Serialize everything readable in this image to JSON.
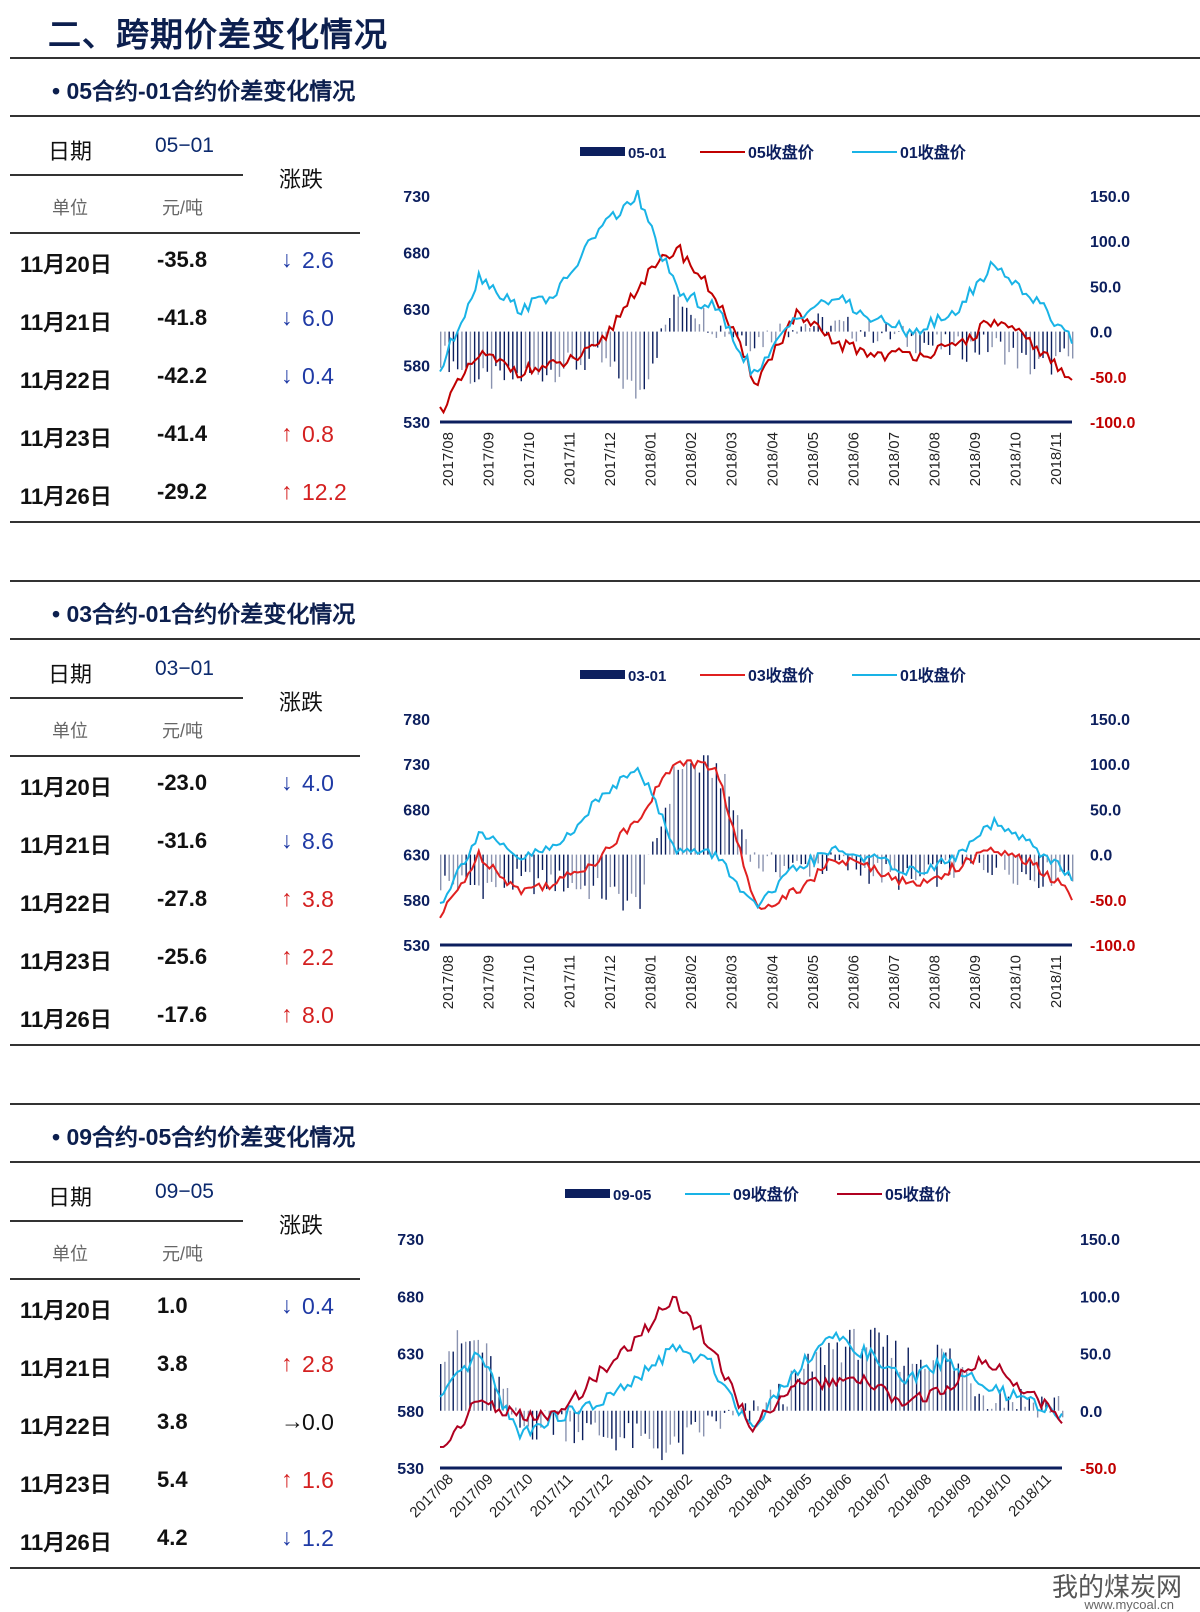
{
  "page_title": "二、跨期价差变化情况",
  "watermark": "我的煤炭网",
  "watermark_url": "www.mycoal.cn",
  "sections": [
    {
      "title": "• 05合约-01合约价差变化情况",
      "table": {
        "date_header": "日期",
        "code_header": "05−01",
        "change_header": "涨跌",
        "unit_label": "单位",
        "unit_value": "元/吨",
        "rows": [
          {
            "date": "11月20日",
            "value": "-35.8",
            "arrow": "↓",
            "change": "2.6",
            "dir": "down"
          },
          {
            "date": "11月21日",
            "value": "-41.8",
            "arrow": "↓",
            "change": "6.0",
            "dir": "down"
          },
          {
            "date": "11月22日",
            "value": "-42.2",
            "arrow": "↓",
            "change": "0.4",
            "dir": "down"
          },
          {
            "date": "11月23日",
            "value": "-41.4",
            "arrow": "↑",
            "change": "0.8",
            "dir": "up"
          },
          {
            "date": "11月26日",
            "value": "-29.2",
            "arrow": "↑",
            "change": "12.2",
            "dir": "up"
          }
        ]
      }
    },
    {
      "title": "• 03合约-01合约价差变化情况",
      "table": {
        "date_header": "日期",
        "code_header": "03−01",
        "change_header": "涨跌",
        "unit_label": "单位",
        "unit_value": "元/吨",
        "rows": [
          {
            "date": "11月20日",
            "value": "-23.0",
            "arrow": "↓",
            "change": "4.0",
            "dir": "down"
          },
          {
            "date": "11月21日",
            "value": "-31.6",
            "arrow": "↓",
            "change": "8.6",
            "dir": "down"
          },
          {
            "date": "11月22日",
            "value": "-27.8",
            "arrow": "↑",
            "change": "3.8",
            "dir": "up"
          },
          {
            "date": "11月23日",
            "value": "-25.6",
            "arrow": "↑",
            "change": "2.2",
            "dir": "up"
          },
          {
            "date": "11月26日",
            "value": "-17.6",
            "arrow": "↑",
            "change": "8.0",
            "dir": "up"
          }
        ]
      }
    },
    {
      "title": "• 09合约-05合约价差变化情况",
      "table": {
        "date_header": "日期",
        "code_header": "09−05",
        "change_header": "涨跌",
        "unit_label": "单位",
        "unit_value": "元/吨",
        "rows": [
          {
            "date": "11月20日",
            "value": "1.0",
            "arrow": "↓",
            "change": "0.4",
            "dir": "down"
          },
          {
            "date": "11月21日",
            "value": "3.8",
            "arrow": "↑",
            "change": "2.8",
            "dir": "up"
          },
          {
            "date": "11月22日",
            "value": "3.8",
            "arrow": "→",
            "change": "0.0",
            "dir": "flat"
          },
          {
            "date": "11月23日",
            "value": "5.4",
            "arrow": "↑",
            "change": "1.6",
            "dir": "up"
          },
          {
            "date": "11月26日",
            "value": "4.2",
            "arrow": "↓",
            "change": "1.2",
            "dir": "down"
          }
        ]
      }
    }
  ],
  "chart_data": [
    {
      "type": "bar+line",
      "x_tick_labels": [
        "2017/08",
        "2017/09",
        "2017/10",
        "2017/11",
        "2017/12",
        "2018/01",
        "2018/02",
        "2018/03",
        "2018/04",
        "2018/05",
        "2018/06",
        "2018/07",
        "2018/08",
        "2018/09",
        "2018/10",
        "2018/11"
      ],
      "x_tick_rotation": "vertical",
      "x": [
        "2017/08",
        "2017/09",
        "2017/10",
        "2017/11",
        "2017/12",
        "2018/01",
        "2018/02",
        "2018/03",
        "2018/04",
        "2018/05",
        "2018/06",
        "2018/07",
        "2018/08",
        "2018/09",
        "2018/10",
        "2018/11",
        "2018/11/26"
      ],
      "left_axis": {
        "ylim": [
          530,
          730
        ],
        "ticks": [
          "730",
          "680",
          "630",
          "580",
          "530"
        ]
      },
      "right_axis": {
        "ylim": [
          -100,
          150
        ],
        "ticks": [
          "150.0",
          "100.0",
          "50.0",
          "0.0",
          "-50.0",
          "-100.0"
        ]
      },
      "legend_position": "top",
      "colors": {
        "bar": "#0c1f5e",
        "red": "#c00000",
        "blue": "#19b3e6",
        "right_axis_label": "#0c1f5e",
        "right_axis_negative": "#c00000"
      },
      "series": [
        {
          "name": "05-01",
          "kind": "bar",
          "axis": "right",
          "color": "#0c1f5e",
          "values": [
            -25,
            -55,
            -50,
            -40,
            -30,
            -70,
            40,
            5,
            -10,
            10,
            5,
            0,
            -10,
            -20,
            -15,
            -40,
            -29.2
          ]
        },
        {
          "name": "05收盘价",
          "kind": "line",
          "axis": "left",
          "color": "#c00000",
          "values": [
            540,
            590,
            575,
            580,
            595,
            650,
            685,
            640,
            565,
            625,
            600,
            590,
            590,
            595,
            620,
            600,
            565
          ]
        },
        {
          "name": "01收盘价",
          "kind": "line",
          "axis": "left",
          "color": "#19b3e6",
          "values": [
            575,
            660,
            630,
            645,
            700,
            730,
            645,
            630,
            570,
            625,
            640,
            620,
            610,
            625,
            670,
            640,
            605
          ]
        }
      ]
    },
    {
      "type": "bar+line",
      "x_tick_labels": [
        "2017/08",
        "2017/09",
        "2017/10",
        "2017/11",
        "2017/12",
        "2018/01",
        "2018/02",
        "2018/03",
        "2018/04",
        "2018/05",
        "2018/06",
        "2018/07",
        "2018/08",
        "2018/09",
        "2018/10",
        "2018/11"
      ],
      "x_tick_rotation": "vertical",
      "x": [
        "2017/08",
        "2017/09",
        "2017/10",
        "2017/11",
        "2017/12",
        "2018/01",
        "2018/02",
        "2018/03",
        "2018/04",
        "2018/05",
        "2018/06",
        "2018/07",
        "2018/08",
        "2018/09",
        "2018/10",
        "2018/11",
        "2018/11/26"
      ],
      "left_axis": {
        "ylim": [
          530,
          780
        ],
        "ticks": [
          "780",
          "730",
          "680",
          "630",
          "580",
          "530"
        ]
      },
      "right_axis": {
        "ylim": [
          -100,
          150
        ],
        "ticks": [
          "150.0",
          "100.0",
          "50.0",
          "0.0",
          "-50.0",
          "-100.0"
        ]
      },
      "legend_position": "top",
      "colors": {
        "bar": "#0c1f5e",
        "red": "#e02020",
        "blue": "#19b3e6",
        "right_axis_label": "#0c1f5e",
        "right_axis_negative": "#c00000"
      },
      "series": [
        {
          "name": "03-01",
          "kind": "bar",
          "axis": "right",
          "color": "#0c1f5e",
          "values": [
            -30,
            -35,
            -30,
            -30,
            -40,
            -55,
            100,
            95,
            -10,
            -15,
            -10,
            -20,
            -30,
            -15,
            -10,
            -25,
            -17.6
          ]
        },
        {
          "name": "03收盘价",
          "kind": "line",
          "axis": "left",
          "color": "#e02020",
          "values": [
            560,
            630,
            590,
            600,
            625,
            670,
            735,
            725,
            570,
            590,
            625,
            615,
            595,
            615,
            635,
            620,
            585
          ]
        },
        {
          "name": "01收盘价",
          "kind": "line",
          "axis": "left",
          "color": "#19b3e6",
          "values": [
            575,
            655,
            625,
            640,
            690,
            730,
            635,
            630,
            570,
            615,
            635,
            625,
            610,
            625,
            665,
            640,
            605
          ]
        }
      ]
    },
    {
      "type": "bar+line",
      "x_tick_labels": [
        "2017/08",
        "2017/09",
        "2017/10",
        "2017/11",
        "2017/12",
        "2018/01",
        "2018/02",
        "2018/03",
        "2018/04",
        "2018/05",
        "2018/06",
        "2018/07",
        "2018/08",
        "2018/09",
        "2018/10",
        "2018/11"
      ],
      "x_tick_rotation": "diagonal",
      "x": [
        "2017/08",
        "2017/09",
        "2017/10",
        "2017/11",
        "2017/12",
        "2018/01",
        "2018/02",
        "2018/03",
        "2018/04",
        "2018/05",
        "2018/06",
        "2018/07",
        "2018/08",
        "2018/09",
        "2018/10",
        "2018/11",
        "2018/11/26"
      ],
      "left_axis": {
        "ylim": [
          530,
          730
        ],
        "ticks": [
          "730",
          "680",
          "630",
          "580",
          "530"
        ]
      },
      "right_axis": {
        "ylim": [
          -50,
          150
        ],
        "ticks": [
          "150.0",
          "100.0",
          "50.0",
          "0.0",
          "-50.0"
        ]
      },
      "legend_position": "top",
      "colors": {
        "bar": "#0c1f5e",
        "red": "#b00020",
        "blue": "#19b3e6",
        "right_axis_label": "#0c1f5e",
        "right_axis_negative": "#c00000"
      },
      "series": [
        {
          "name": "09-05",
          "kind": "bar",
          "axis": "right",
          "color": "#0c1f5e",
          "values": [
            55,
            60,
            -15,
            -10,
            -20,
            -25,
            -35,
            -10,
            -5,
            20,
            55,
            60,
            45,
            50,
            15,
            10,
            4.2
          ]
        },
        {
          "name": "09收盘价",
          "kind": "line",
          "axis": "left",
          "color": "#19b3e6",
          "values": [
            590,
            630,
            560,
            575,
            585,
            605,
            635,
            620,
            565,
            610,
            645,
            630,
            605,
            625,
            600,
            590,
            575
          ]
        },
        {
          "name": "05收盘价",
          "kind": "line",
          "axis": "left",
          "color": "#b00020",
          "values": [
            545,
            590,
            575,
            575,
            610,
            640,
            680,
            635,
            565,
            600,
            605,
            605,
            585,
            600,
            625,
            600,
            575
          ]
        }
      ]
    }
  ]
}
